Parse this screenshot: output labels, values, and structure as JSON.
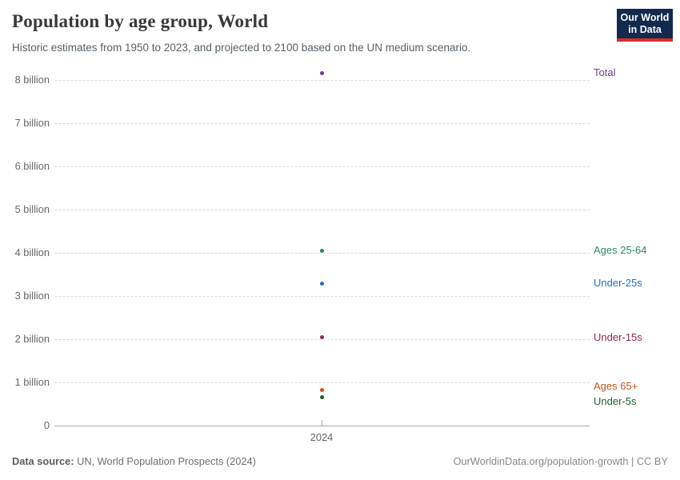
{
  "header": {
    "title": "Population by age group, World",
    "subtitle": "Historic estimates from 1950 to 2023, and projected to 2100 based on the UN medium scenario.",
    "logo": {
      "line1": "Our World",
      "line2": "in Data",
      "bg_color": "#122a4e",
      "accent_color": "#dc2d26"
    }
  },
  "chart_data": {
    "type": "scatter",
    "title": "Population by age group, World",
    "xlabel": "",
    "ylabel": "",
    "x": [
      2024
    ],
    "x_tick_label": "2024",
    "ylim": [
      0,
      8.3
    ],
    "grid": true,
    "legend_position": "right-of-points",
    "yticks": [
      {
        "value": 0,
        "label": "0"
      },
      {
        "value": 1,
        "label": "1 billion"
      },
      {
        "value": 2,
        "label": "2 billion"
      },
      {
        "value": 3,
        "label": "3 billion"
      },
      {
        "value": 4,
        "label": "4 billion"
      },
      {
        "value": 5,
        "label": "5 billion"
      },
      {
        "value": 6,
        "label": "6 billion"
      },
      {
        "value": 7,
        "label": "7 billion"
      },
      {
        "value": 8,
        "label": "8 billion"
      }
    ],
    "series": [
      {
        "name": "Total",
        "year": 2024,
        "value_billion": 8.16,
        "color": "#6d3e91",
        "label_dy": 0
      },
      {
        "name": "Ages 25-64",
        "year": 2024,
        "value_billion": 4.05,
        "color": "#2c8465",
        "label_dy": 0
      },
      {
        "name": "Under-25s",
        "year": 2024,
        "value_billion": 3.29,
        "color": "#286bbb",
        "label_dy": 0
      },
      {
        "name": "Under-15s",
        "year": 2024,
        "value_billion": 2.04,
        "color": "#932846",
        "label_dy": 0
      },
      {
        "name": "Ages 65+",
        "year": 2024,
        "value_billion": 0.83,
        "color": "#c4521a",
        "label_dy": -4
      },
      {
        "name": "Under-5s",
        "year": 2024,
        "value_billion": 0.65,
        "color": "#215e32",
        "label_dy": 5
      }
    ]
  },
  "footer": {
    "source_label": "Data source:",
    "source_text": " UN, World Population Prospects (2024)",
    "link_text": "OurWorldinData.org/population-growth | CC BY"
  }
}
